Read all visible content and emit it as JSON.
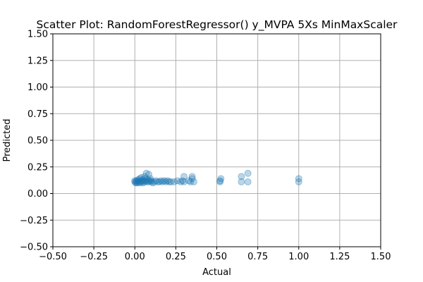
{
  "chart_data": {
    "type": "scatter",
    "title": "Scatter Plot: RandomForestRegressor() y_MVPA 5Xs MinMaxScaler",
    "xlabel": "Actual",
    "ylabel": "Predicted",
    "xlim": [
      -0.5,
      1.5
    ],
    "ylim": [
      -0.5,
      1.5
    ],
    "x_ticks": [
      -0.5,
      -0.25,
      0.0,
      0.25,
      0.5,
      0.75,
      1.0,
      1.25,
      1.5
    ],
    "y_ticks": [
      -0.5,
      -0.25,
      0.0,
      0.25,
      0.5,
      0.75,
      1.0,
      1.25,
      1.5
    ],
    "x_tick_labels": [
      "−0.50",
      "−0.25",
      "0.00",
      "0.25",
      "0.50",
      "0.75",
      "1.00",
      "1.25",
      "1.50"
    ],
    "y_tick_labels": [
      "−0.50",
      "−0.25",
      "0.00",
      "0.25",
      "0.50",
      "0.75",
      "1.00",
      "1.25",
      "1.50"
    ],
    "grid": true,
    "point_color": "#1f77b4",
    "points": [
      [
        0.0,
        0.11
      ],
      [
        0.0,
        0.12
      ],
      [
        0.005,
        0.1
      ],
      [
        0.01,
        0.12
      ],
      [
        0.01,
        0.11
      ],
      [
        0.015,
        0.1
      ],
      [
        0.02,
        0.13
      ],
      [
        0.02,
        0.11
      ],
      [
        0.025,
        0.12
      ],
      [
        0.03,
        0.14
      ],
      [
        0.03,
        0.1
      ],
      [
        0.035,
        0.11
      ],
      [
        0.04,
        0.12
      ],
      [
        0.04,
        0.15
      ],
      [
        0.045,
        0.11
      ],
      [
        0.05,
        0.13
      ],
      [
        0.05,
        0.1
      ],
      [
        0.055,
        0.12
      ],
      [
        0.06,
        0.16
      ],
      [
        0.06,
        0.11
      ],
      [
        0.065,
        0.14
      ],
      [
        0.07,
        0.19
      ],
      [
        0.07,
        0.12
      ],
      [
        0.075,
        0.11
      ],
      [
        0.08,
        0.13
      ],
      [
        0.085,
        0.18
      ],
      [
        0.085,
        0.11
      ],
      [
        0.09,
        0.12
      ],
      [
        0.095,
        0.14
      ],
      [
        0.1,
        0.11
      ],
      [
        0.1,
        0.12
      ],
      [
        0.11,
        0.1
      ],
      [
        0.12,
        0.11
      ],
      [
        0.13,
        0.12
      ],
      [
        0.14,
        0.11
      ],
      [
        0.15,
        0.11
      ],
      [
        0.16,
        0.12
      ],
      [
        0.17,
        0.11
      ],
      [
        0.18,
        0.12
      ],
      [
        0.19,
        0.11
      ],
      [
        0.2,
        0.12
      ],
      [
        0.21,
        0.11
      ],
      [
        0.22,
        0.11
      ],
      [
        0.24,
        0.11
      ],
      [
        0.26,
        0.12
      ],
      [
        0.28,
        0.11
      ],
      [
        0.29,
        0.12
      ],
      [
        0.3,
        0.16
      ],
      [
        0.3,
        0.11
      ],
      [
        0.33,
        0.12
      ],
      [
        0.34,
        0.11
      ],
      [
        0.35,
        0.16
      ],
      [
        0.35,
        0.14
      ],
      [
        0.36,
        0.11
      ],
      [
        0.52,
        0.11
      ],
      [
        0.52,
        0.12
      ],
      [
        0.525,
        0.14
      ],
      [
        0.65,
        0.11
      ],
      [
        0.65,
        0.16
      ],
      [
        0.69,
        0.11
      ],
      [
        0.69,
        0.19
      ],
      [
        1.0,
        0.11
      ],
      [
        1.0,
        0.14
      ]
    ]
  }
}
